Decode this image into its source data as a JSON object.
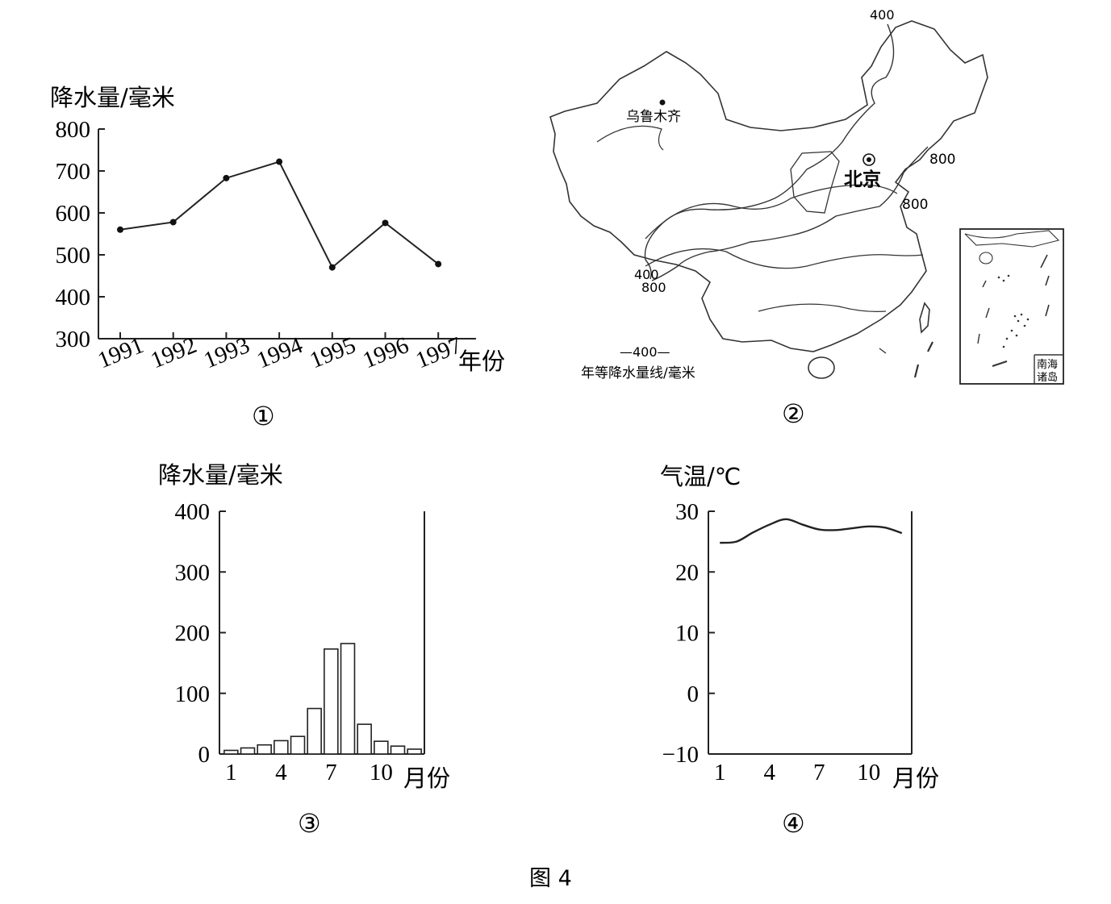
{
  "caption": "图 4",
  "chart_data": [
    {
      "id": "panel-1",
      "type": "line",
      "panel_label": "①",
      "ylabel": "降水量/毫米",
      "xlabel": "年份",
      "x": [
        "1991",
        "1992",
        "1993",
        "1994",
        "1995",
        "1996",
        "1997"
      ],
      "values": [
        560,
        578,
        683,
        722,
        470,
        576,
        478
      ],
      "yticks": [
        "800",
        "700",
        "600",
        "500",
        "400",
        "300"
      ],
      "ylim": [
        300,
        800
      ]
    },
    {
      "id": "panel-3",
      "type": "bar",
      "panel_label": "③",
      "ylabel": "降水量/毫米",
      "xlabel": "月份",
      "categories": [
        "1",
        "2",
        "3",
        "4",
        "5",
        "6",
        "7",
        "8",
        "9",
        "10",
        "11",
        "12"
      ],
      "x_tick_labels": [
        "1",
        "4",
        "7",
        "10"
      ],
      "values": [
        6,
        10,
        15,
        22,
        29,
        75,
        173,
        182,
        49,
        21,
        13,
        8
      ],
      "yticks": [
        "400",
        "300",
        "200",
        "100",
        "0"
      ],
      "ylim": [
        0,
        400
      ]
    },
    {
      "id": "panel-4",
      "type": "line",
      "panel_label": "④",
      "ylabel": "气温/℃",
      "xlabel": "月份",
      "x": [
        1,
        2,
        3,
        4,
        5,
        6,
        7,
        8,
        9,
        10,
        11,
        12
      ],
      "x_tick_labels": [
        "1",
        "4",
        "7",
        "10"
      ],
      "values": [
        24.8,
        25.0,
        26.5,
        27.8,
        28.7,
        27.8,
        27.0,
        26.9,
        27.2,
        27.5,
        27.3,
        26.4
      ],
      "yticks": [
        "30",
        "20",
        "10",
        "0",
        "-10"
      ],
      "ylim": [
        -10,
        30
      ]
    }
  ],
  "map": {
    "panel_label": "②",
    "city_urumqi": "乌鲁木齐",
    "city_beijing": "北京",
    "iso_top": "400",
    "iso_ne": "800",
    "iso_beijing": "800",
    "iso_sw_400": "400",
    "iso_sw_800": "800",
    "legend_value": "—400—",
    "legend_text": "年等降水量线/毫米",
    "inset_label": "南海诸岛"
  }
}
